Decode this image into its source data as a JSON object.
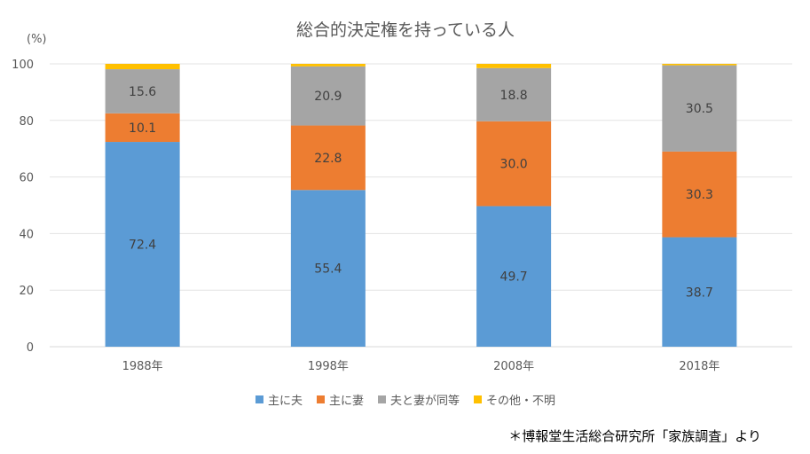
{
  "chart_data": {
    "type": "bar",
    "stacked": true,
    "title": "総合的決定権を持っている人",
    "ylabel": "(%)",
    "xlabel": "",
    "ylim": [
      0,
      100
    ],
    "yticks": [
      0,
      20,
      40,
      60,
      80,
      100
    ],
    "categories": [
      "1988年",
      "1998年",
      "2008年",
      "2018年"
    ],
    "series": [
      {
        "name": "主に夫",
        "color": "#5b9bd5",
        "values": [
          72.4,
          55.4,
          49.7,
          38.7
        ],
        "labels": [
          "72.4",
          "55.4",
          "49.7",
          "38.7"
        ]
      },
      {
        "name": "主に妻",
        "color": "#ed7d31",
        "values": [
          10.1,
          22.8,
          30.0,
          30.3
        ],
        "labels": [
          "10.1",
          "22.8",
          "30.0",
          "30.3"
        ]
      },
      {
        "name": "夫と妻が同等",
        "color": "#a5a5a5",
        "values": [
          15.6,
          20.9,
          18.8,
          30.5
        ],
        "labels": [
          "15.6",
          "20.9",
          "18.8",
          "30.5"
        ]
      },
      {
        "name": "その他・不明",
        "color": "#ffc000",
        "values": [
          1.9,
          0.9,
          1.5,
          0.5
        ],
        "labels": [
          "",
          "",
          "",
          ""
        ]
      }
    ],
    "grid": true,
    "legend_position": "bottom"
  },
  "source_note": "＊博報堂生活総合研究所「家族調査」より"
}
